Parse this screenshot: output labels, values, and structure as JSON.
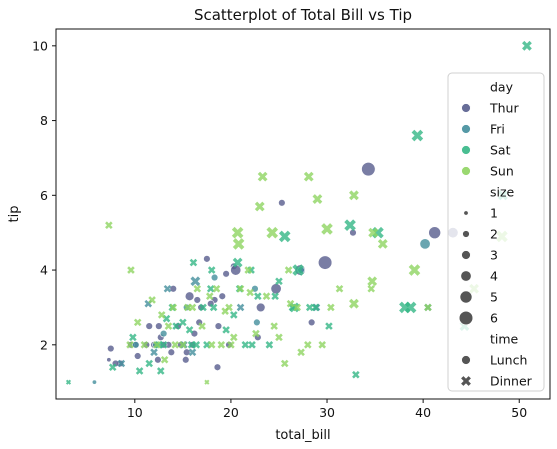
{
  "chart_data": {
    "type": "scatter",
    "title": "Scatterplot of Total Bill vs Tip",
    "xlabel": "total_bill",
    "ylabel": "tip",
    "xlim": [
      1.8,
      53.2
    ],
    "ylim": [
      0.55,
      10.45
    ],
    "xticks": [
      10,
      20,
      30,
      40,
      50
    ],
    "yticks": [
      2,
      4,
      6,
      8,
      10
    ],
    "xtick_labels": [
      "10",
      "20",
      "30",
      "40",
      "50"
    ],
    "ytick_labels": [
      "2",
      "4",
      "6",
      "8",
      "10"
    ],
    "grid": false,
    "legend": {
      "placement": "right",
      "hue_title": "day",
      "hue_entries": [
        {
          "label": "Thur",
          "color": "#575d8d"
        },
        {
          "label": "Fri",
          "color": "#438e9c"
        },
        {
          "label": "Sat",
          "color": "#35b786"
        },
        {
          "label": "Sun",
          "color": "#8fd461"
        }
      ],
      "size_title": "size",
      "size_entries": [
        "1",
        "2",
        "3",
        "4",
        "5",
        "6"
      ],
      "style_title": "time",
      "style_entries": [
        {
          "label": "Lunch",
          "marker": "circle"
        },
        {
          "label": "Dinner",
          "marker": "x"
        }
      ]
    },
    "series": [
      {
        "name": "Thur",
        "color": "#575d8d",
        "marker": "circle",
        "points": [
          [
            34.3,
            6.7,
            6
          ],
          [
            41.2,
            5.0,
            5
          ],
          [
            43.1,
            5.0,
            4
          ],
          [
            32.7,
            5.0,
            2
          ],
          [
            29.8,
            4.2,
            6
          ],
          [
            27.2,
            4.0,
            4
          ],
          [
            20.3,
            4.1,
            2
          ],
          [
            19.5,
            3.9,
            2
          ],
          [
            17.5,
            4.3,
            2
          ],
          [
            16.0,
            2.0,
            2
          ],
          [
            8.5,
            1.5,
            2
          ],
          [
            7.5,
            1.9,
            2
          ],
          [
            7.3,
            1.6,
            1
          ],
          [
            11.2,
            2.0,
            2
          ],
          [
            12.0,
            2.0,
            2
          ],
          [
            13.5,
            2.0,
            2
          ],
          [
            14.5,
            2.5,
            2
          ],
          [
            15.7,
            3.3,
            3
          ],
          [
            16.7,
            2.6,
            2
          ],
          [
            18.3,
            3.2,
            2
          ],
          [
            19.1,
            3.3,
            2
          ],
          [
            10.3,
            1.7,
            2
          ],
          [
            10.1,
            2.0,
            2
          ],
          [
            12.4,
            1.6,
            2
          ],
          [
            13.8,
            1.8,
            2
          ],
          [
            15.3,
            1.6,
            2
          ],
          [
            16.5,
            3.2,
            2
          ],
          [
            17.9,
            3.1,
            2
          ],
          [
            18.7,
            2.5,
            2
          ],
          [
            20.5,
            4.0,
            4
          ],
          [
            24.7,
            3.5,
            4
          ],
          [
            25.3,
            5.8,
            2
          ],
          [
            23.1,
            3.0,
            3
          ],
          [
            22.8,
            2.2,
            2
          ],
          [
            28.4,
            2.6,
            2
          ],
          [
            18.6,
            1.4,
            2
          ],
          [
            9.6,
            2.0,
            2
          ],
          [
            11.5,
            2.5,
            2
          ],
          [
            12.7,
            2.2,
            2
          ],
          [
            14.0,
            3.5,
            2
          ],
          [
            14.8,
            2.0,
            2
          ],
          [
            16.2,
            2.3,
            2
          ],
          [
            13.0,
            2.0,
            2
          ],
          [
            8.0,
            1.5,
            2
          ],
          [
            12.5,
            2.5,
            2
          ],
          [
            15.4,
            1.8,
            2
          ],
          [
            16.9,
            3.0,
            2
          ],
          [
            19.8,
            2.0,
            2
          ]
        ]
      },
      {
        "name": "Fri",
        "color": "#438e9c",
        "marker": "mix",
        "points": [
          [
            40.2,
            4.7,
            4
          ],
          [
            28.9,
            3.0,
            2
          ],
          [
            22.5,
            3.5,
            2
          ],
          [
            16.3,
            3.7,
            3
          ],
          [
            15.4,
            3.0,
            2
          ],
          [
            13.4,
            3.5,
            2
          ],
          [
            12.2,
            2.0,
            2
          ],
          [
            11.4,
            3.1,
            2
          ],
          [
            10.1,
            2.0,
            2
          ],
          [
            8.6,
            1.5,
            2
          ],
          [
            5.8,
            1.0,
            1
          ],
          [
            12.0,
            1.8,
            2
          ],
          [
            13.0,
            2.3,
            2
          ],
          [
            15.1,
            2.0,
            2
          ],
          [
            18.3,
            3.8,
            2
          ],
          [
            21.0,
            3.0,
            2
          ],
          [
            27.3,
            4.0,
            2
          ],
          [
            40.5,
            3.0,
            2
          ],
          [
            22.7,
            2.6,
            2
          ],
          [
            16.0,
            1.8,
            2
          ]
        ]
      },
      {
        "name": "Sat",
        "color": "#35b786",
        "marker": "x",
        "points": [
          [
            50.8,
            10.0,
            3
          ],
          [
            39.4,
            7.6,
            4
          ],
          [
            25.6,
            4.9,
            4
          ],
          [
            27.0,
            4.0,
            4
          ],
          [
            28.2,
            3.0,
            2
          ],
          [
            38.1,
            3.0,
            4
          ],
          [
            38.7,
            3.0,
            4
          ],
          [
            48.3,
            6.0,
            3
          ],
          [
            35.3,
            5.0,
            4
          ],
          [
            44.3,
            2.5,
            3
          ],
          [
            22.8,
            3.3,
            2
          ],
          [
            24.0,
            2.0,
            2
          ],
          [
            20.3,
            2.8,
            2
          ],
          [
            18.2,
            3.0,
            2
          ],
          [
            17.5,
            2.0,
            2
          ],
          [
            15.9,
            2.0,
            2
          ],
          [
            13.9,
            3.0,
            2
          ],
          [
            12.5,
            2.0,
            2
          ],
          [
            11.5,
            1.5,
            2
          ],
          [
            10.5,
            1.3,
            2
          ],
          [
            9.8,
            2.2,
            2
          ],
          [
            7.7,
            1.4,
            2
          ],
          [
            3.1,
            1.0,
            1
          ],
          [
            20.9,
            3.5,
            2
          ],
          [
            22.1,
            4.0,
            2
          ],
          [
            26.4,
            3.0,
            2
          ],
          [
            30.2,
            2.5,
            2
          ],
          [
            33.0,
            1.2,
            2
          ],
          [
            28.8,
            3.0,
            2
          ],
          [
            21.5,
            2.0,
            2
          ],
          [
            17.9,
            3.5,
            2
          ],
          [
            16.4,
            2.0,
            2
          ],
          [
            15.0,
            2.6,
            2
          ],
          [
            14.3,
            2.5,
            2
          ],
          [
            13.0,
            2.0,
            2
          ],
          [
            12.7,
            1.3,
            2
          ],
          [
            18.0,
            4.0,
            2
          ],
          [
            19.5,
            2.4,
            2
          ],
          [
            20.7,
            4.2,
            3
          ],
          [
            25.0,
            3.7,
            2
          ],
          [
            26.6,
            3.0,
            3
          ],
          [
            32.4,
            5.2,
            4
          ],
          [
            24.6,
            3.3,
            2
          ],
          [
            22.2,
            2.0,
            2
          ],
          [
            15.7,
            2.4,
            2
          ],
          [
            17.1,
            3.0,
            2
          ],
          [
            13.3,
            2.7,
            2
          ],
          [
            16.1,
            4.2,
            2
          ]
        ]
      },
      {
        "name": "Sun",
        "color": "#8fd461",
        "marker": "x",
        "points": [
          [
            48.2,
            4.9,
            4
          ],
          [
            45.3,
            3.5,
            3
          ],
          [
            30.0,
            5.1,
            4
          ],
          [
            32.8,
            6.0,
            3
          ],
          [
            34.8,
            5.0,
            3
          ],
          [
            29.0,
            5.9,
            3
          ],
          [
            28.1,
            6.5,
            3
          ],
          [
            23.3,
            6.5,
            3
          ],
          [
            20.7,
            5.0,
            4
          ],
          [
            23.0,
            5.7,
            3
          ],
          [
            35.8,
            4.7,
            3
          ],
          [
            39.1,
            4.0,
            4
          ],
          [
            7.3,
            5.2,
            2
          ],
          [
            9.6,
            4.0,
            2
          ],
          [
            9.5,
            2.0,
            2
          ],
          [
            10.3,
            2.6,
            2
          ],
          [
            11.0,
            2.0,
            2
          ],
          [
            12.3,
            2.0,
            2
          ],
          [
            13.1,
            1.6,
            2
          ],
          [
            14.2,
            2.0,
            2
          ],
          [
            15.0,
            2.0,
            2
          ],
          [
            16.0,
            3.0,
            2
          ],
          [
            17.0,
            2.5,
            2
          ],
          [
            17.5,
            1.0,
            1
          ],
          [
            18.0,
            2.0,
            2
          ],
          [
            19.0,
            2.0,
            2
          ],
          [
            19.8,
            3.0,
            2
          ],
          [
            20.3,
            2.2,
            2
          ],
          [
            21.0,
            3.5,
            2
          ],
          [
            22.0,
            3.4,
            2
          ],
          [
            23.7,
            3.3,
            2
          ],
          [
            24.5,
            2.5,
            2
          ],
          [
            25.0,
            2.2,
            2
          ],
          [
            25.6,
            1.5,
            2
          ],
          [
            26.9,
            3.0,
            2
          ],
          [
            28.0,
            2.0,
            2
          ],
          [
            29.5,
            2.0,
            2
          ],
          [
            30.4,
            3.0,
            2
          ],
          [
            31.3,
            3.5,
            2
          ],
          [
            34.6,
            3.5,
            2
          ],
          [
            34.7,
            3.7,
            3
          ],
          [
            40.5,
            3.0,
            2
          ],
          [
            15.5,
            3.0,
            2
          ],
          [
            14.0,
            3.0,
            2
          ],
          [
            16.5,
            3.5,
            2
          ],
          [
            18.5,
            3.5,
            2
          ],
          [
            20.0,
            2.0,
            2
          ],
          [
            21.8,
            4.0,
            2
          ],
          [
            26.0,
            4.0,
            2
          ],
          [
            27.3,
            1.8,
            2
          ],
          [
            13.5,
            2.5,
            2
          ],
          [
            12.8,
            2.8,
            2
          ],
          [
            20.8,
            4.7,
            4
          ],
          [
            24.3,
            5.0,
            4
          ],
          [
            32.8,
            3.1,
            3
          ],
          [
            17.8,
            3.3,
            2
          ],
          [
            22.6,
            2.3,
            2
          ],
          [
            26.2,
            3.1,
            2
          ],
          [
            11.8,
            3.2,
            2
          ],
          [
            19.4,
            2.9,
            2
          ]
        ]
      }
    ]
  }
}
